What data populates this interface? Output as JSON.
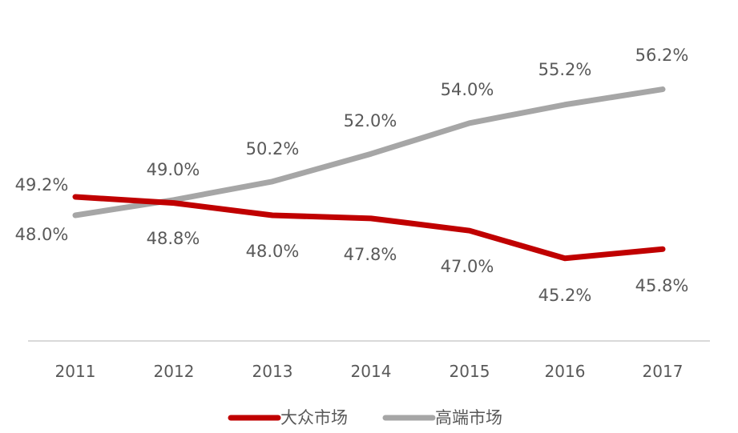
{
  "chart_data": {
    "type": "line",
    "title": "",
    "xlabel": "",
    "ylabel": "",
    "categories": [
      "2011",
      "2012",
      "2013",
      "2014",
      "2015",
      "2016",
      "2017"
    ],
    "series": [
      {
        "name": "大众市场",
        "color": "#C00000",
        "values": [
          49.2,
          48.8,
          48.0,
          47.8,
          47.0,
          45.2,
          45.8
        ],
        "labels": [
          "49.2%",
          "48.8%",
          "48.0%",
          "47.8%",
          "47.0%",
          "45.2%",
          "45.8%"
        ]
      },
      {
        "name": "高端市场",
        "color": "#A6A6A6",
        "values": [
          48.0,
          49.0,
          50.2,
          52.0,
          54.0,
          55.2,
          56.2
        ],
        "labels": [
          "48.0%",
          "49.0%",
          "50.2%",
          "52.0%",
          "54.0%",
          "55.2%",
          "56.2%"
        ]
      }
    ],
    "grid": false,
    "legend_position": "bottom",
    "axis_color": "#D9D9D9"
  }
}
